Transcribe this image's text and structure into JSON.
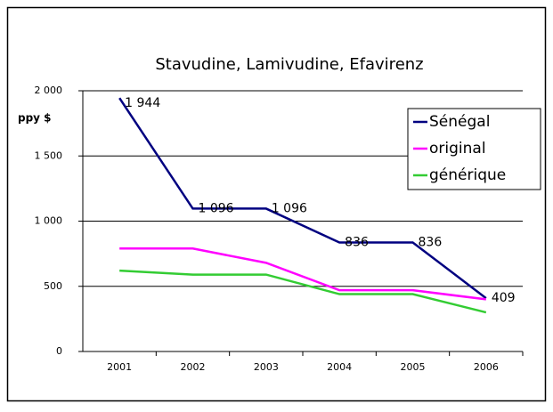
{
  "chart_data": {
    "type": "line",
    "title": "Stavudine, Lamivudine, Efavirenz",
    "y_label": "ppy $",
    "categories": [
      "2001",
      "2002",
      "2003",
      "2004",
      "2005",
      "2006"
    ],
    "series": [
      {
        "name": "Sénégal",
        "color": "#000080",
        "values": [
          1944,
          1096,
          1096,
          836,
          836,
          409
        ],
        "value_labels": [
          "1 944",
          "1 096",
          "1 096",
          "836",
          "836",
          "409"
        ]
      },
      {
        "name": "original",
        "color": "#ff00ff",
        "values": [
          790,
          790,
          680,
          470,
          470,
          400
        ]
      },
      {
        "name": "générique",
        "color": "#33cc33",
        "values": [
          620,
          590,
          590,
          440,
          440,
          300
        ]
      }
    ],
    "ylim": [
      0,
      2000
    ],
    "yticks": [
      0,
      500,
      {
        "value": 1000,
        "label": "1 000"
      },
      {
        "value": 1500,
        "label": "1 500"
      },
      {
        "value": 2000,
        "label": "2 000"
      }
    ],
    "grid": true,
    "legend": "upper right"
  }
}
